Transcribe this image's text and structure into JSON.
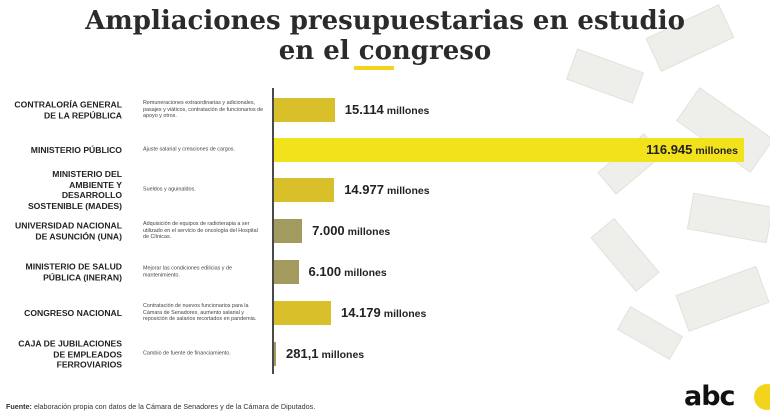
{
  "title_line1": "Ampliaciones presupuestarias en estudio",
  "title_line2": "en el congreso",
  "colors": {
    "accent": "#f2d41c",
    "bar_light": "#d9c02a",
    "bar_olive": "#a39a5e",
    "divider": "#4a4a4a"
  },
  "chart_data": {
    "type": "bar",
    "orientation": "horizontal",
    "title": "Ampliaciones presupuestarias en estudio en el congreso",
    "unit": "millones",
    "xlim": [
      0,
      116945
    ],
    "categories": [
      {
        "label": "CONTRALORÍA GENERAL DE LA REPÚBLICA",
        "description": "Remuneraciones extraordinarias y adicionales, pasajes y viáticos, contratación de funcionarios de apoyo y otros.",
        "value": 15114,
        "value_label": "15.114",
        "color": "#d9c02a"
      },
      {
        "label": "MINISTERIO PÚBLICO",
        "description": "Ajuste salarial y creaciones de cargos.",
        "value": 116945,
        "value_label": "116.945",
        "color": "#f2e21c"
      },
      {
        "label": "MINISTERIO DEL AMBIENTE Y DESARROLLO SOSTENIBLE (MADES)",
        "description": "Sueldos y aguinaldos.",
        "value": 14977,
        "value_label": "14.977",
        "color": "#d9c02a"
      },
      {
        "label": "UNIVERSIDAD NACIONAL DE ASUNCIÓN (UNA)",
        "description": "Adquisición de equipos de radioterapia a ser utilizado en el servicio de oncología del Hospital de Clínicas.",
        "value": 7000,
        "value_label": "7.000",
        "color": "#a39a5e"
      },
      {
        "label": "MINISTERIO DE SALUD PÚBLICA (INERAN)",
        "description": "Mejorar las condiciones edilicias y de mantenimiento.",
        "value": 6100,
        "value_label": "6.100",
        "color": "#a39a5e"
      },
      {
        "label": "CONGRESO NACIONAL",
        "description": "Contratación de nuevos funcionarios para la Cámara de Senadores, aumento salarial y reposición de salarios recortados en pandemia.",
        "value": 14179,
        "value_label": "14.179",
        "color": "#d9c02a"
      },
      {
        "label": "CAJA DE JUBILACIONES DE EMPLEADOS FERROVIARIOS",
        "description": "Cambio de fuente de financiamiento.",
        "value": 281.1,
        "value_label": "281,1",
        "color": "#a39a5e"
      }
    ]
  },
  "footer_label": "Fuente:",
  "footer_text": " elaboración propia con datos de la Cámara de Senadores y de la Cámara de Diputados.",
  "logo_text": "abc"
}
